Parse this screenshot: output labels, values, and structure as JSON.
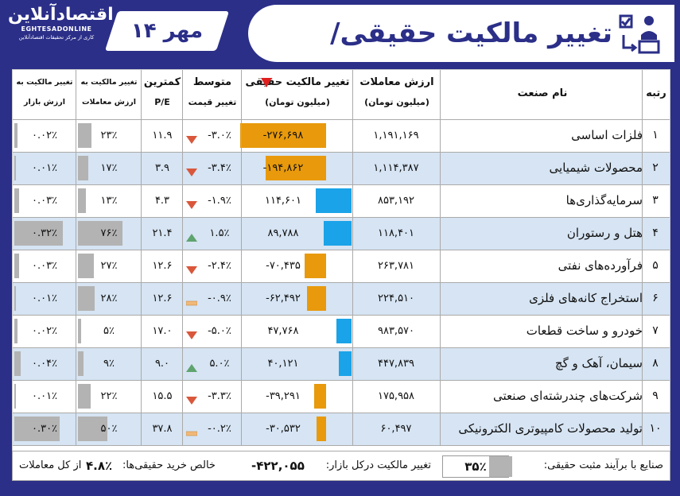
{
  "header": {
    "logo_fa": "اقتصادآنلاین",
    "logo_en": "EGHTESADONLINE",
    "logo_sub": "کاری از مرکز تحقیقات اقتصادآنلاین",
    "date": "۱۴ مهر",
    "title": "تغییر مالکیت حقیقی/حقوقی"
  },
  "columns": {
    "rank": "رتبه",
    "industry": "نام صنعت",
    "trade_value_l1": "ارزش معاملات",
    "trade_value_l2": "(میلیون تومان)",
    "ownership_change_l1": "تغییر مالکیت حقیقی",
    "ownership_change_l2": "(میلیون تومان)",
    "price_change_l1": "متوسط",
    "price_change_l2": "تغییر قیمت",
    "pe_l1": "کمترین",
    "pe_l2": "P/E",
    "ratio_trade_l1": "تغییر مالکیت به",
    "ratio_trade_l2": "ارزش معاملات",
    "ratio_market_l1": "تغییر مالکیت به",
    "ratio_market_l2": "ارزش بازار"
  },
  "rows": [
    {
      "rank": "۱",
      "industry": "فلزات اساسی",
      "trade_value": "۱,۱۹۱,۱۶۹",
      "ownership_change": "-۲۷۶,۶۹۸",
      "ownership_value": -276698,
      "price_change": "-۳.۰٪",
      "trend": "down",
      "pe": "۱۱.۹",
      "ratio_trade": "۲۳٪",
      "ratio_trade_pct": 23,
      "ratio_market": "۰.۰۲٪",
      "ratio_market_pct": 0.02
    },
    {
      "rank": "۲",
      "industry": "محصولات شیمیایی",
      "trade_value": "۱,۱۱۴,۳۸۷",
      "ownership_change": "-۱۹۴,۸۶۲",
      "ownership_value": -194862,
      "price_change": "-۳.۴٪",
      "trend": "down",
      "pe": "۳.۹",
      "ratio_trade": "۱۷٪",
      "ratio_trade_pct": 17,
      "ratio_market": "۰.۰۱٪",
      "ratio_market_pct": 0.01
    },
    {
      "rank": "۳",
      "industry": "سرمایه‌گذاری‌ها",
      "trade_value": "۸۵۳,۱۹۲",
      "ownership_change": "۱۱۴,۶۰۱",
      "ownership_value": 114601,
      "price_change": "-۱.۹٪",
      "trend": "down",
      "pe": "۴.۳",
      "ratio_trade": "۱۳٪",
      "ratio_trade_pct": 13,
      "ratio_market": "۰.۰۳٪",
      "ratio_market_pct": 0.03
    },
    {
      "rank": "۴",
      "industry": "هتل و رستوران",
      "trade_value": "۱۱۸,۴۰۱",
      "ownership_change": "۸۹,۷۸۸",
      "ownership_value": 89788,
      "price_change": "۱.۵٪",
      "trend": "up",
      "pe": "۲۱.۴",
      "ratio_trade": "۷۶٪",
      "ratio_trade_pct": 76,
      "ratio_market": "۰.۳۲٪",
      "ratio_market_pct": 0.32
    },
    {
      "rank": "۵",
      "industry": "فرآورده‌های نفتی",
      "trade_value": "۲۶۳,۷۸۱",
      "ownership_change": "-۷۰,۴۳۵",
      "ownership_value": -70435,
      "price_change": "-۲.۴٪",
      "trend": "down",
      "pe": "۱۲.۶",
      "ratio_trade": "۲۷٪",
      "ratio_trade_pct": 27,
      "ratio_market": "۰.۰۳٪",
      "ratio_market_pct": 0.03
    },
    {
      "rank": "۶",
      "industry": "استخراج کانه‌های فلزی",
      "trade_value": "۲۲۴,۵۱۰",
      "ownership_change": "-۶۲,۴۹۲",
      "ownership_value": -62492,
      "price_change": "-۰.۹٪",
      "trend": "flat",
      "pe": "۱۲.۶",
      "ratio_trade": "۲۸٪",
      "ratio_trade_pct": 28,
      "ratio_market": "۰.۰۱٪",
      "ratio_market_pct": 0.01
    },
    {
      "rank": "۷",
      "industry": "خودرو و ساخت قطعات",
      "trade_value": "۹۸۳,۵۷۰",
      "ownership_change": "۴۷,۷۶۸",
      "ownership_value": 47768,
      "price_change": "-۵.۰٪",
      "trend": "down",
      "pe": "۱۷.۰",
      "ratio_trade": "۵٪",
      "ratio_trade_pct": 5,
      "ratio_market": "۰.۰۲٪",
      "ratio_market_pct": 0.02
    },
    {
      "rank": "۸",
      "industry": "سیمان، آهک و گچ",
      "trade_value": "۴۴۷,۸۳۹",
      "ownership_change": "۴۰,۱۲۱",
      "ownership_value": 40121,
      "price_change": "۵.۰٪",
      "trend": "up",
      "pe": "۹.۰",
      "ratio_trade": "۹٪",
      "ratio_trade_pct": 9,
      "ratio_market": "۰.۰۴٪",
      "ratio_market_pct": 0.04
    },
    {
      "rank": "۹",
      "industry": "شرکت‌های چندرشته‌ای صنعتی",
      "trade_value": "۱۷۵,۹۵۸",
      "ownership_change": "-۳۹,۲۹۱",
      "ownership_value": -39291,
      "price_change": "-۳.۳٪",
      "trend": "down",
      "pe": "۱۵.۵",
      "ratio_trade": "۲۲٪",
      "ratio_trade_pct": 22,
      "ratio_market": "۰.۰۱٪",
      "ratio_market_pct": 0.01
    },
    {
      "rank": "۱۰",
      "industry": "تولید محصولات کامپیوتری الکترونیکی",
      "trade_value": "۶۰,۴۹۷",
      "ownership_change": "-۳۰,۵۳۲",
      "ownership_value": -30532,
      "price_change": "-۰.۲٪",
      "trend": "flat",
      "pe": "۳۷.۸",
      "ratio_trade": "۵۰٪",
      "ratio_trade_pct": 50,
      "ratio_market": "۰.۳۰٪",
      "ratio_market_pct": 0.3
    }
  ],
  "footer": {
    "positive_label": "صنایع با برآیند مثبت حقیقی:",
    "positive_value": "۳۵٪",
    "positive_pct": 35,
    "market_change_label": "تغییر مالکیت درکل بازار:",
    "market_change_value": "-۴۲۲,۰۵۵",
    "net_buy_label": "خالص خرید حقیقی‌ها:",
    "net_buy_value": "۴.۸٪",
    "net_buy_suffix": "از کل معاملات"
  },
  "colors": {
    "brand": "#2b2f88",
    "negative_bar": "#e89a0c",
    "positive_bar": "#1aa3e8",
    "ratio_bar": "#b3b3b3",
    "alt_row": "#d6e4f3",
    "down_arrow": "#d9573b",
    "up_arrow": "#5fa36f",
    "flat_mark": "#f0b979"
  }
}
